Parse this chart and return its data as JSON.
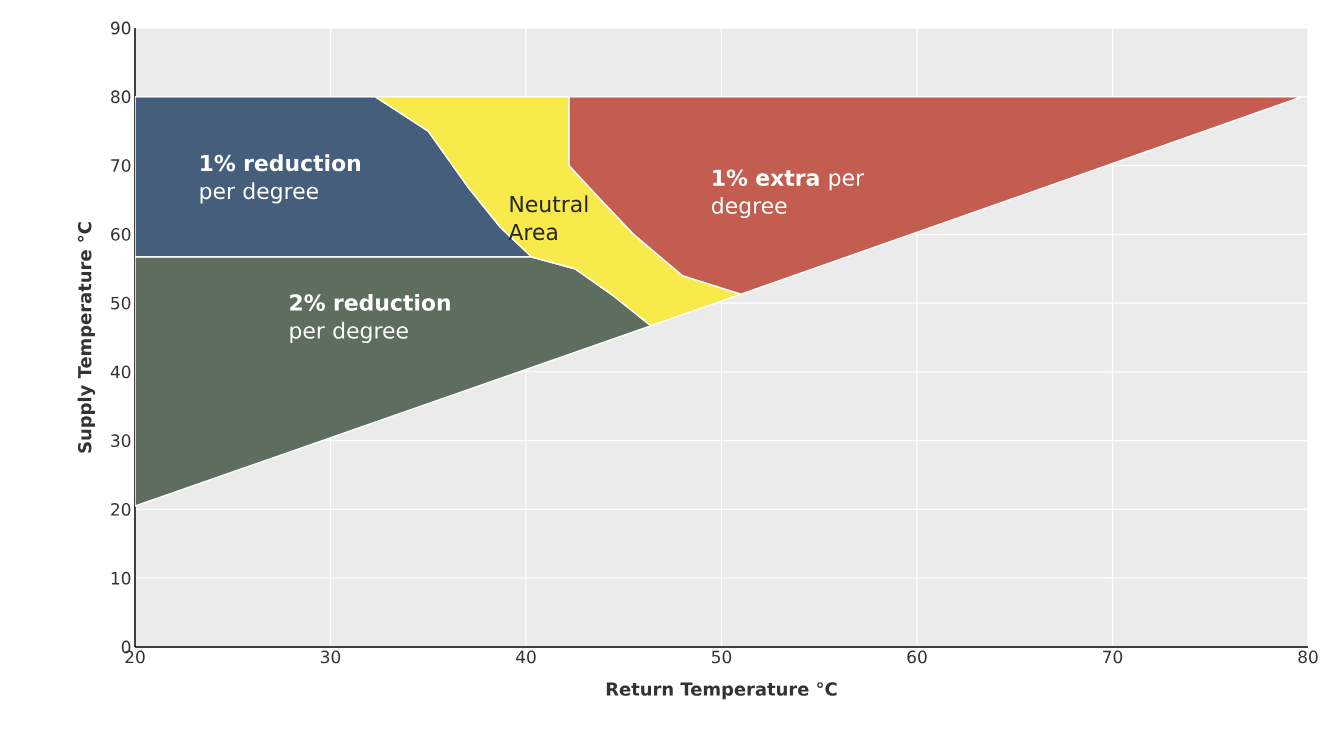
{
  "chart_data": {
    "type": "area",
    "xlabel": "Return Temperature °C",
    "ylabel": "Supply Temperature °C",
    "xlim": [
      20,
      80
    ],
    "ylim": [
      0,
      90
    ],
    "xticks": [
      20,
      30,
      40,
      50,
      60,
      70,
      80
    ],
    "yticks": [
      0,
      10,
      20,
      30,
      40,
      50,
      60,
      70,
      80,
      90
    ],
    "grid": true,
    "series": [
      {
        "name": "**1% reduction** per degree",
        "color": "#445e7c",
        "x": [
          20,
          32.3,
          35,
          37,
          38.7,
          40.3,
          20
        ],
        "values": [
          80,
          80,
          75,
          67,
          61,
          56.7,
          56.7
        ]
      },
      {
        "name": "**2% reduction** per degree",
        "color": "#5d6e5e",
        "x": [
          20,
          40.3,
          42.5,
          44.5,
          46.4,
          20
        ],
        "values": [
          56.7,
          56.7,
          55,
          51,
          46.7,
          20.5
        ]
      },
      {
        "name": "Neutral Area",
        "color": "#f7ea4a",
        "x": [
          32.3,
          42.2,
          42.2,
          43.5,
          45.5,
          48,
          51,
          46.4,
          44.5,
          42.5,
          40.3,
          38.7,
          37,
          35
        ],
        "values": [
          80,
          80,
          70,
          66,
          60,
          54,
          51.3,
          46.7,
          51,
          55,
          56.7,
          61,
          67,
          75
        ]
      },
      {
        "name": "**1% extra** per degree",
        "color": "#c25d4f",
        "x": [
          42.2,
          79.7,
          51,
          48,
          45.5,
          43.5,
          42.2
        ],
        "values": [
          80,
          80,
          51.3,
          54,
          60,
          66,
          70
        ]
      }
    ]
  }
}
